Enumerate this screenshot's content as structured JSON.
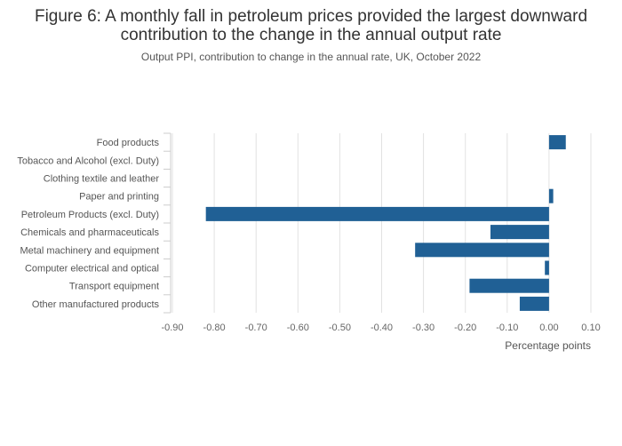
{
  "chart_data": {
    "type": "bar",
    "orientation": "horizontal",
    "title": "Figure 6: A monthly fall in petroleum prices provided the largest downward contribution to the change in the annual output rate",
    "subtitle": "Output PPI, contribution to change in the annual rate, UK, October 2022",
    "xlabel": "Percentage points",
    "ylabel": "",
    "xlim": [
      -0.9,
      0.1
    ],
    "xticks": [
      "-0.90",
      "-0.80",
      "-0.70",
      "-0.60",
      "-0.50",
      "-0.40",
      "-0.30",
      "-0.20",
      "-0.10",
      "0.00",
      "0.10"
    ],
    "grid": true,
    "categories": [
      "Food products",
      "Tobacco and Alcohol (excl. Duty)",
      "Clothing textile and leather",
      "Paper and printing",
      "Petroleum Products (excl. Duty)",
      "Chemicals and pharmaceuticals",
      "Metal machinery and equipment",
      "Computer electrical and optical",
      "Transport equipment",
      "Other manufactured products"
    ],
    "values": [
      0.04,
      0.0,
      0.0,
      0.01,
      -0.82,
      -0.14,
      -0.32,
      -0.01,
      -0.19,
      -0.07
    ],
    "color": "#206095"
  }
}
